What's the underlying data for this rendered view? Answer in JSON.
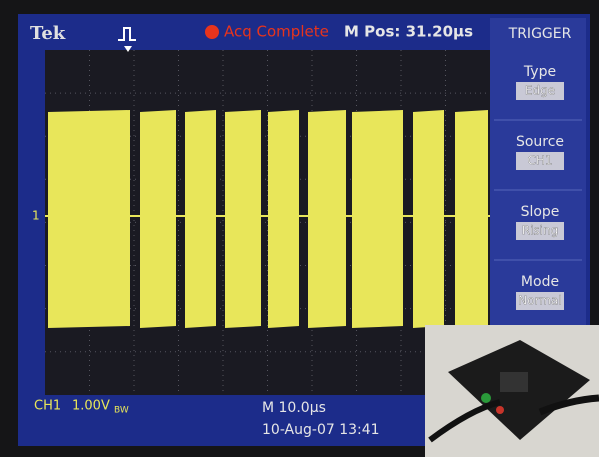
{
  "header": {
    "brand": "Tek",
    "status": "Acq Complete",
    "position": "M Pos: 31.20µs"
  },
  "menu": {
    "title": "TRIGGER",
    "items": [
      {
        "label": "Type",
        "value": "Edge"
      },
      {
        "label": "Source",
        "value": "CH1"
      },
      {
        "label": "Slope",
        "value": "Rising"
      },
      {
        "label": "Mode",
        "value": "Normal"
      }
    ]
  },
  "channel_marker": "1",
  "footer": {
    "channel": "CH1",
    "scale": "1.00V",
    "bandwidth": "BW",
    "timebase": "M 10.0µs",
    "date": "10-Aug-07 13:41"
  }
}
